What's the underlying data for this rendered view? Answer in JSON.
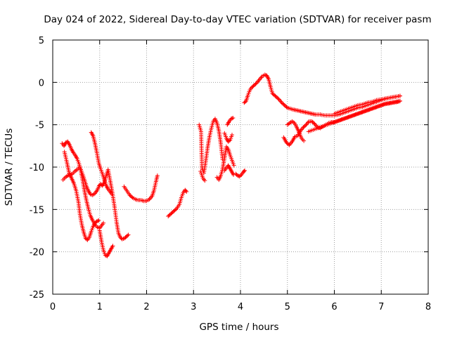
{
  "chart_data": {
    "type": "scatter",
    "title": "Day 024 of 2022, Sidereal Day-to-day VTEC variation (SDTVAR) for receiver pasm",
    "xlabel": "GPS time / hours",
    "ylabel": "SDTVAR / TECUs",
    "xlim": [
      0,
      8
    ],
    "ylim": [
      -25,
      5
    ],
    "xticks": [
      0,
      1,
      2,
      3,
      4,
      5,
      6,
      7,
      8
    ],
    "yticks": [
      5,
      0,
      -5,
      -10,
      -15,
      -20,
      -25
    ],
    "grid": true,
    "marker": "+",
    "color": "#ff0000",
    "segments": [
      {
        "x": [
          0.22,
          0.27,
          0.32,
          0.37,
          0.42,
          0.47,
          0.52,
          0.57,
          0.6,
          0.64,
          0.68,
          0.72,
          0.76,
          0.8,
          0.85,
          0.9,
          0.95,
          0.99,
          1.02,
          1.06,
          1.1,
          1.14,
          1.18,
          1.22,
          1.27,
          1.32,
          1.36,
          1.4,
          1.44,
          1.48,
          1.53,
          1.57,
          1.61
        ],
        "y": [
          -11.5,
          -11.2,
          -11.0,
          -10.9,
          -10.8,
          -10.5,
          -10.3,
          -10.0,
          -10.3,
          -10.9,
          -11.6,
          -12.3,
          -12.8,
          -13.2,
          -13.3,
          -13.1,
          -12.7,
          -12.2,
          -12.0,
          -12.2,
          -11.8,
          -11.0,
          -10.3,
          -11.5,
          -13.0,
          -14.8,
          -16.5,
          -17.8,
          -18.3,
          -18.5,
          -18.4,
          -18.2,
          -18.0
        ]
      },
      {
        "x": [
          0.2,
          0.24,
          0.28,
          0.32,
          0.36,
          0.4,
          0.44,
          0.48,
          0.52,
          0.56,
          0.6,
          0.64,
          0.68,
          0.72,
          0.76,
          0.8,
          0.85,
          0.9,
          0.95,
          1.0,
          1.04,
          1.08
        ],
        "y": [
          -7.2,
          -7.5,
          -7.1,
          -7.0,
          -7.4,
          -7.9,
          -8.3,
          -8.6,
          -9.0,
          -9.6,
          -10.5,
          -11.6,
          -12.9,
          -14.0,
          -14.9,
          -15.7,
          -16.3,
          -16.8,
          -17.1,
          -17.2,
          -16.9,
          -16.6
        ]
      },
      {
        "x": [
          0.25,
          0.3,
          0.35,
          0.4,
          0.45,
          0.5,
          0.55,
          0.58,
          0.62,
          0.66,
          0.7,
          0.74,
          0.78,
          0.82,
          0.86,
          0.9,
          0.94,
          0.98
        ],
        "y": [
          -8.2,
          -9.4,
          -10.7,
          -11.3,
          -11.9,
          -12.8,
          -14.2,
          -15.6,
          -16.8,
          -17.7,
          -18.4,
          -18.6,
          -18.3,
          -17.6,
          -17.0,
          -16.6,
          -16.4,
          -16.3
        ]
      },
      {
        "x": [
          0.82,
          0.86,
          0.9,
          0.94,
          0.98,
          1.02,
          1.06,
          1.1,
          1.14,
          1.18,
          1.22,
          1.26
        ],
        "y": [
          -5.9,
          -6.3,
          -7.2,
          -8.3,
          -9.5,
          -10.2,
          -10.8,
          -11.5,
          -12.2,
          -12.6,
          -12.9,
          -13.2
        ]
      },
      {
        "x": [
          1.0,
          1.04,
          1.08,
          1.12,
          1.16,
          1.2,
          1.24,
          1.28
        ],
        "y": [
          -17.5,
          -18.8,
          -19.8,
          -20.4,
          -20.5,
          -20.1,
          -19.7,
          -19.3
        ]
      },
      {
        "x": [
          1.52,
          1.58,
          1.64,
          1.7,
          1.76,
          1.82,
          1.88,
          1.94,
          2.0,
          2.06,
          2.12,
          2.16,
          2.2,
          2.23
        ],
        "y": [
          -12.3,
          -12.8,
          -13.3,
          -13.6,
          -13.8,
          -13.9,
          -13.9,
          -14.0,
          -14.0,
          -13.8,
          -13.4,
          -12.7,
          -11.7,
          -11.0
        ]
      },
      {
        "x": [
          2.46,
          2.52,
          2.58,
          2.64,
          2.7,
          2.74,
          2.78,
          2.82,
          2.85
        ],
        "y": [
          -15.8,
          -15.5,
          -15.2,
          -14.9,
          -14.4,
          -13.6,
          -13.0,
          -12.7,
          -12.9
        ]
      },
      {
        "x": [
          3.12,
          3.16,
          3.18,
          3.22,
          3.26,
          3.3,
          3.34,
          3.38,
          3.42,
          3.46,
          3.5,
          3.54,
          3.58,
          3.62
        ],
        "y": [
          -5.0,
          -5.8,
          -10.1,
          -10.7,
          -9.3,
          -7.7,
          -6.4,
          -5.4,
          -4.6,
          -4.3,
          -4.8,
          -5.7,
          -7.2,
          -9.1
        ]
      },
      {
        "x": [
          3.15,
          3.2,
          3.24
        ],
        "y": [
          -10.5,
          -11.3,
          -11.6
        ]
      },
      {
        "x": [
          3.5,
          3.54,
          3.58,
          3.62,
          3.66,
          3.7,
          3.74,
          3.78,
          3.82,
          3.86
        ],
        "y": [
          -11.2,
          -11.5,
          -11.0,
          -10.2,
          -8.9,
          -7.6,
          -7.9,
          -8.6,
          -9.2,
          -9.8
        ]
      },
      {
        "x": [
          3.66,
          3.7,
          3.74,
          3.78,
          3.82,
          3.85
        ],
        "y": [
          -10.4,
          -10.1,
          -9.8,
          -10.2,
          -10.6,
          -10.9
        ]
      },
      {
        "x": [
          3.66,
          3.7,
          3.74,
          3.78,
          3.82
        ],
        "y": [
          -6.0,
          -6.6,
          -7.0,
          -6.8,
          -6.2
        ]
      },
      {
        "x": [
          3.72,
          3.76,
          3.8,
          3.84
        ],
        "y": [
          -5.0,
          -4.6,
          -4.3,
          -4.2
        ]
      },
      {
        "x": [
          3.9,
          3.94,
          3.98,
          4.02,
          4.06,
          4.09
        ],
        "y": [
          -10.8,
          -11.0,
          -11.1,
          -10.9,
          -10.6,
          -10.4
        ]
      },
      {
        "x": [
          4.08,
          4.12,
          4.16,
          4.2,
          4.24,
          4.28,
          4.34,
          4.4,
          4.46,
          4.52,
          4.56,
          4.6,
          4.64,
          4.68,
          4.72,
          4.76,
          4.82,
          4.88,
          4.94,
          5.0,
          5.06,
          5.12,
          5.2,
          5.28,
          5.36,
          5.44,
          5.52,
          5.6,
          5.7,
          5.8,
          5.9,
          6.0,
          6.1,
          6.2,
          6.3,
          6.4,
          6.5,
          6.6,
          6.7,
          6.8,
          6.9,
          7.0,
          7.1,
          7.2,
          7.3,
          7.4
        ],
        "y": [
          -2.4,
          -2.2,
          -1.5,
          -0.9,
          -0.6,
          -0.4,
          -0.1,
          0.3,
          0.7,
          0.9,
          0.8,
          0.4,
          -0.5,
          -1.3,
          -1.5,
          -1.7,
          -2.0,
          -2.4,
          -2.7,
          -3.0,
          -3.1,
          -3.2,
          -3.3,
          -3.4,
          -3.5,
          -3.6,
          -3.7,
          -3.8,
          -3.8,
          -3.9,
          -3.9,
          -3.9,
          -3.8,
          -3.6,
          -3.4,
          -3.2,
          -3.0,
          -2.9,
          -2.7,
          -2.5,
          -2.3,
          -2.1,
          -1.9,
          -1.8,
          -1.7,
          -1.6
        ]
      },
      {
        "x": [
          4.92,
          4.98,
          5.04,
          5.1,
          5.16,
          5.22,
          5.28,
          5.34,
          5.4,
          5.46,
          5.52,
          5.58,
          5.64,
          5.7,
          5.76,
          5.82,
          5.88,
          5.94,
          6.0,
          6.1,
          6.2,
          6.3,
          6.4,
          6.5,
          6.6,
          6.7,
          6.8,
          6.9,
          7.0,
          7.1,
          7.2,
          7.3,
          7.4
        ],
        "y": [
          -6.5,
          -7.1,
          -7.4,
          -7.0,
          -6.4,
          -6.3,
          -5.7,
          -5.3,
          -5.0,
          -4.6,
          -4.6,
          -4.9,
          -5.3,
          -5.4,
          -5.2,
          -5.0,
          -4.8,
          -4.7,
          -4.7,
          -4.5,
          -4.3,
          -4.1,
          -3.9,
          -3.7,
          -3.5,
          -3.3,
          -3.1,
          -2.9,
          -2.7,
          -2.5,
          -2.4,
          -2.3,
          -2.2
        ]
      },
      {
        "x": [
          5.0,
          5.05,
          5.1,
          5.15,
          5.2,
          5.25,
          5.3,
          5.35
        ],
        "y": [
          -5.0,
          -4.8,
          -4.6,
          -4.8,
          -5.3,
          -5.9,
          -6.6,
          -6.9
        ]
      },
      {
        "x": [
          5.45,
          5.55,
          5.65,
          5.75,
          5.85,
          5.95,
          6.05,
          6.15,
          6.25,
          6.35,
          6.45,
          6.55,
          6.65,
          6.75,
          6.85,
          6.95,
          7.05,
          7.15,
          7.25,
          7.35,
          7.4
        ],
        "y": [
          -5.8,
          -5.6,
          -5.4,
          -5.2,
          -5.0,
          -4.8,
          -4.6,
          -4.4,
          -4.2,
          -4.0,
          -3.8,
          -3.6,
          -3.4,
          -3.2,
          -3.0,
          -2.8,
          -2.6,
          -2.5,
          -2.4,
          -2.3,
          -2.2
        ]
      },
      {
        "x": [
          6.0,
          6.1,
          6.2,
          6.3,
          6.4,
          6.5,
          6.6,
          6.7,
          6.8,
          6.9,
          7.0,
          7.1,
          7.2,
          7.3,
          7.4
        ],
        "y": [
          -3.7,
          -3.5,
          -3.3,
          -3.1,
          -2.9,
          -2.7,
          -2.6,
          -2.4,
          -2.3,
          -2.1,
          -2.0,
          -1.9,
          -1.8,
          -1.7,
          -1.6
        ]
      }
    ]
  }
}
